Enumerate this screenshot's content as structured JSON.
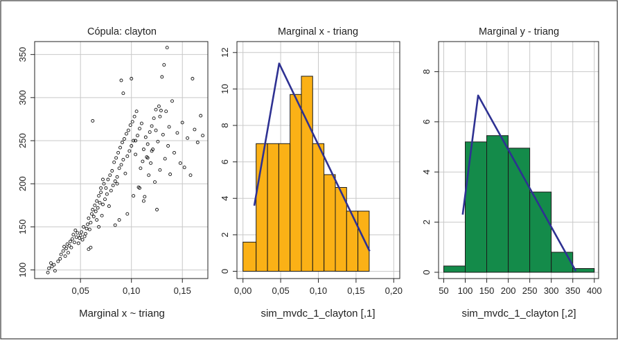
{
  "chart_data": [
    {
      "type": "scatter",
      "title": "Cópula: clayton",
      "xlabel": "Marginal x ~ triang",
      "ylabel": "",
      "xlim": [
        0.005,
        0.175
      ],
      "ylim": [
        90,
        365
      ],
      "xticks": [
        "0,05",
        "0,10",
        "0,15"
      ],
      "xtick_values": [
        0.05,
        0.1,
        0.15
      ],
      "yticks": [
        "100",
        "150",
        "200",
        "250",
        "300",
        "350"
      ],
      "ytick_values": [
        100,
        150,
        200,
        250,
        300,
        350
      ],
      "grid": true,
      "point_style": "open-circle",
      "points": [
        [
          0.018,
          97
        ],
        [
          0.019,
          102
        ],
        [
          0.021,
          108
        ],
        [
          0.022,
          104
        ],
        [
          0.024,
          106
        ],
        [
          0.025,
          99
        ],
        [
          0.028,
          110
        ],
        [
          0.03,
          113
        ],
        [
          0.031,
          118
        ],
        [
          0.033,
          122
        ],
        [
          0.034,
          127
        ],
        [
          0.035,
          116
        ],
        [
          0.036,
          125
        ],
        [
          0.037,
          130
        ],
        [
          0.038,
          120
        ],
        [
          0.039,
          128
        ],
        [
          0.04,
          133
        ],
        [
          0.041,
          126
        ],
        [
          0.042,
          136
        ],
        [
          0.043,
          141
        ],
        [
          0.044,
          132
        ],
        [
          0.045,
          146
        ],
        [
          0.046,
          138
        ],
        [
          0.047,
          143
        ],
        [
          0.048,
          131
        ],
        [
          0.049,
          137
        ],
        [
          0.05,
          140
        ],
        [
          0.051,
          144
        ],
        [
          0.052,
          135
        ],
        [
          0.053,
          150
        ],
        [
          0.054,
          139
        ],
        [
          0.055,
          142
        ],
        [
          0.056,
          148
        ],
        [
          0.057,
          153
        ],
        [
          0.058,
          160
        ],
        [
          0.059,
          147
        ],
        [
          0.06,
          155
        ],
        [
          0.061,
          165
        ],
        [
          0.062,
          170
        ],
        [
          0.063,
          162
        ],
        [
          0.064,
          175
        ],
        [
          0.065,
          168
        ],
        [
          0.066,
          180
        ],
        [
          0.067,
          172
        ],
        [
          0.068,
          186
        ],
        [
          0.069,
          178
        ],
        [
          0.07,
          190
        ],
        [
          0.071,
          163
        ],
        [
          0.072,
          176
        ],
        [
          0.073,
          200
        ],
        [
          0.074,
          182
        ],
        [
          0.075,
          195
        ],
        [
          0.076,
          188
        ],
        [
          0.077,
          205
        ],
        [
          0.078,
          174
        ],
        [
          0.079,
          210
        ],
        [
          0.08,
          192
        ],
        [
          0.081,
          215
        ],
        [
          0.082,
          198
        ],
        [
          0.083,
          225
        ],
        [
          0.084,
          203
        ],
        [
          0.085,
          230
        ],
        [
          0.086,
          208
        ],
        [
          0.087,
          236
        ],
        [
          0.088,
          218
        ],
        [
          0.089,
          242
        ],
        [
          0.09,
          222
        ],
        [
          0.091,
          248
        ],
        [
          0.092,
          228
        ],
        [
          0.093,
          252
        ],
        [
          0.094,
          212
        ],
        [
          0.095,
          258
        ],
        [
          0.096,
          232
        ],
        [
          0.097,
          262
        ],
        [
          0.098,
          238
        ],
        [
          0.099,
          268
        ],
        [
          0.1,
          244
        ],
        [
          0.101,
          272
        ],
        [
          0.102,
          250
        ],
        [
          0.103,
          278
        ],
        [
          0.104,
          234
        ],
        [
          0.105,
          284
        ],
        [
          0.106,
          256
        ],
        [
          0.107,
          196
        ],
        [
          0.108,
          264
        ],
        [
          0.109,
          218
        ],
        [
          0.11,
          270
        ],
        [
          0.111,
          226
        ],
        [
          0.112,
          240
        ],
        [
          0.113,
          185
        ],
        [
          0.114,
          254
        ],
        [
          0.115,
          231
        ],
        [
          0.116,
          246
        ],
        [
          0.117,
          210
        ],
        [
          0.118,
          260
        ],
        [
          0.119,
          224
        ],
        [
          0.12,
          267
        ],
        [
          0.121,
          240
        ],
        [
          0.122,
          276
        ],
        [
          0.123,
          202
        ],
        [
          0.124,
          286
        ],
        [
          0.125,
          170
        ],
        [
          0.126,
          249
        ],
        [
          0.127,
          290
        ],
        [
          0.128,
          216
        ],
        [
          0.129,
          285
        ],
        [
          0.13,
          324
        ],
        [
          0.131,
          257
        ],
        [
          0.132,
          338
        ],
        [
          0.133,
          229
        ],
        [
          0.134,
          284
        ],
        [
          0.135,
          358
        ],
        [
          0.136,
          244
        ],
        [
          0.137,
          266
        ],
        [
          0.138,
          211
        ],
        [
          0.14,
          296
        ],
        [
          0.142,
          236
        ],
        [
          0.145,
          259
        ],
        [
          0.148,
          224
        ],
        [
          0.15,
          271
        ],
        [
          0.152,
          219
        ],
        [
          0.155,
          253
        ],
        [
          0.158,
          210
        ],
        [
          0.16,
          322
        ],
        [
          0.162,
          263
        ],
        [
          0.165,
          248
        ],
        [
          0.168,
          279
        ],
        [
          0.17,
          256
        ],
        [
          0.058,
          124
        ],
        [
          0.06,
          126
        ],
        [
          0.062,
          273
        ],
        [
          0.066,
          158
        ],
        [
          0.068,
          150
        ],
        [
          0.07,
          195
        ],
        [
          0.072,
          205
        ],
        [
          0.084,
          152
        ],
        [
          0.086,
          200
        ],
        [
          0.088,
          158
        ],
        [
          0.09,
          320
        ],
        [
          0.092,
          305
        ],
        [
          0.096,
          165
        ],
        [
          0.1,
          322
        ],
        [
          0.102,
          186
        ],
        [
          0.104,
          250
        ],
        [
          0.108,
          195
        ],
        [
          0.112,
          180
        ],
        [
          0.116,
          230
        ],
        [
          0.12,
          238
        ],
        [
          0.124,
          262
        ],
        [
          0.128,
          278
        ]
      ]
    },
    {
      "type": "bar",
      "title": "Marginal x - triang",
      "xlabel": "sim_mvdc_1_clayton [,1]",
      "ylabel": "",
      "xlim": [
        -0.008,
        0.208
      ],
      "ylim": [
        -0.4,
        12.6
      ],
      "xticks": [
        "0,00",
        "0,05",
        "0,10",
        "0,15",
        "0,20"
      ],
      "xtick_values": [
        0.0,
        0.05,
        0.1,
        0.15,
        0.2
      ],
      "yticks": [
        "0",
        "2",
        "4",
        "6",
        "8",
        "10",
        "12"
      ],
      "ytick_values": [
        0,
        2,
        4,
        6,
        8,
        10,
        12
      ],
      "grid": true,
      "bar_color": "#FBB116",
      "line_color": "#2E3192",
      "bins": [
        [
          0.0,
          0.0175,
          1.6
        ],
        [
          0.0175,
          0.0325,
          7.0
        ],
        [
          0.0325,
          0.0475,
          7.0
        ],
        [
          0.0475,
          0.0625,
          7.0
        ],
        [
          0.0625,
          0.0775,
          9.7
        ],
        [
          0.0775,
          0.0925,
          10.7
        ],
        [
          0.0925,
          0.1075,
          7.0
        ],
        [
          0.1075,
          0.1225,
          5.3
        ],
        [
          0.1225,
          0.1375,
          4.6
        ],
        [
          0.1375,
          0.1525,
          3.3
        ],
        [
          0.1525,
          0.1675,
          3.3
        ]
      ],
      "density_line": [
        [
          0.015,
          3.6
        ],
        [
          0.048,
          11.4
        ],
        [
          0.168,
          1.1
        ]
      ]
    },
    {
      "type": "bar",
      "title": "Marginal y - triang",
      "xlabel": "sim_mvdc_1_clayton [,2]",
      "ylabel": "",
      "xlim": [
        38,
        410
      ],
      "ylim": [
        -0.25,
        9.2
      ],
      "xticks": [
        "50",
        "100",
        "150",
        "200",
        "250",
        "300",
        "350",
        "400"
      ],
      "xtick_values": [
        50,
        100,
        150,
        200,
        250,
        300,
        350,
        400
      ],
      "yticks": [
        "0",
        "2",
        "4",
        "6",
        "8"
      ],
      "ytick_values": [
        0,
        2,
        4,
        6,
        8
      ],
      "grid": true,
      "bar_color": "#148B4A",
      "line_color": "#2E3192",
      "bins": [
        [
          50,
          100,
          0.25
        ],
        [
          100,
          150,
          5.2
        ],
        [
          150,
          200,
          5.45
        ],
        [
          200,
          250,
          4.95
        ],
        [
          250,
          300,
          3.2
        ],
        [
          300,
          350,
          0.8
        ],
        [
          350,
          400,
          0.15
        ]
      ],
      "density_line": [
        [
          94,
          2.3
        ],
        [
          130,
          7.05
        ],
        [
          357,
          0.05
        ]
      ]
    }
  ]
}
